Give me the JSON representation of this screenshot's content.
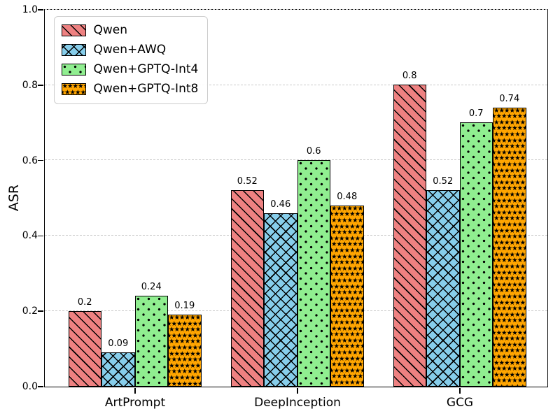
{
  "figure": {
    "background": "#ffffff"
  },
  "chart_data": {
    "type": "bar",
    "title": "",
    "xlabel": "",
    "ylabel": "ASR",
    "categories": [
      "ArtPrompt",
      "DeepInception",
      "GCG"
    ],
    "series": [
      {
        "name": "Qwen",
        "color": "#ee8181",
        "hatch": "diagonal",
        "values": [
          0.2,
          0.52,
          0.8
        ],
        "labels": [
          "0.2",
          "0.52",
          "0.8"
        ]
      },
      {
        "name": "Qwen+AWQ",
        "color": "#87ceeb",
        "hatch": "cross",
        "values": [
          0.09,
          0.46,
          0.52
        ],
        "labels": [
          "0.09",
          "0.46",
          "0.52"
        ]
      },
      {
        "name": "Qwen+GPTQ-Int4",
        "color": "#90ee90",
        "hatch": "dots",
        "values": [
          0.24,
          0.6,
          0.7
        ],
        "labels": [
          "0.24",
          "0.6",
          "0.7"
        ]
      },
      {
        "name": "Qwen+GPTQ-Int8",
        "color": "#ffa500",
        "hatch": "stars",
        "values": [
          0.19,
          0.48,
          0.74
        ],
        "labels": [
          "0.19",
          "0.48",
          "0.74"
        ]
      }
    ],
    "ylim": [
      0.0,
      1.0
    ],
    "yticks": [
      "0.0",
      "0.2",
      "0.4",
      "0.6",
      "0.8",
      "1.0"
    ],
    "grid": "horizontal-dashed",
    "legend_position": "upper-left",
    "colors": {
      "bar_edge": "#000000",
      "grid_line": "#c9c9c9",
      "legend_border": "#cccccc",
      "text": "#000000"
    }
  }
}
